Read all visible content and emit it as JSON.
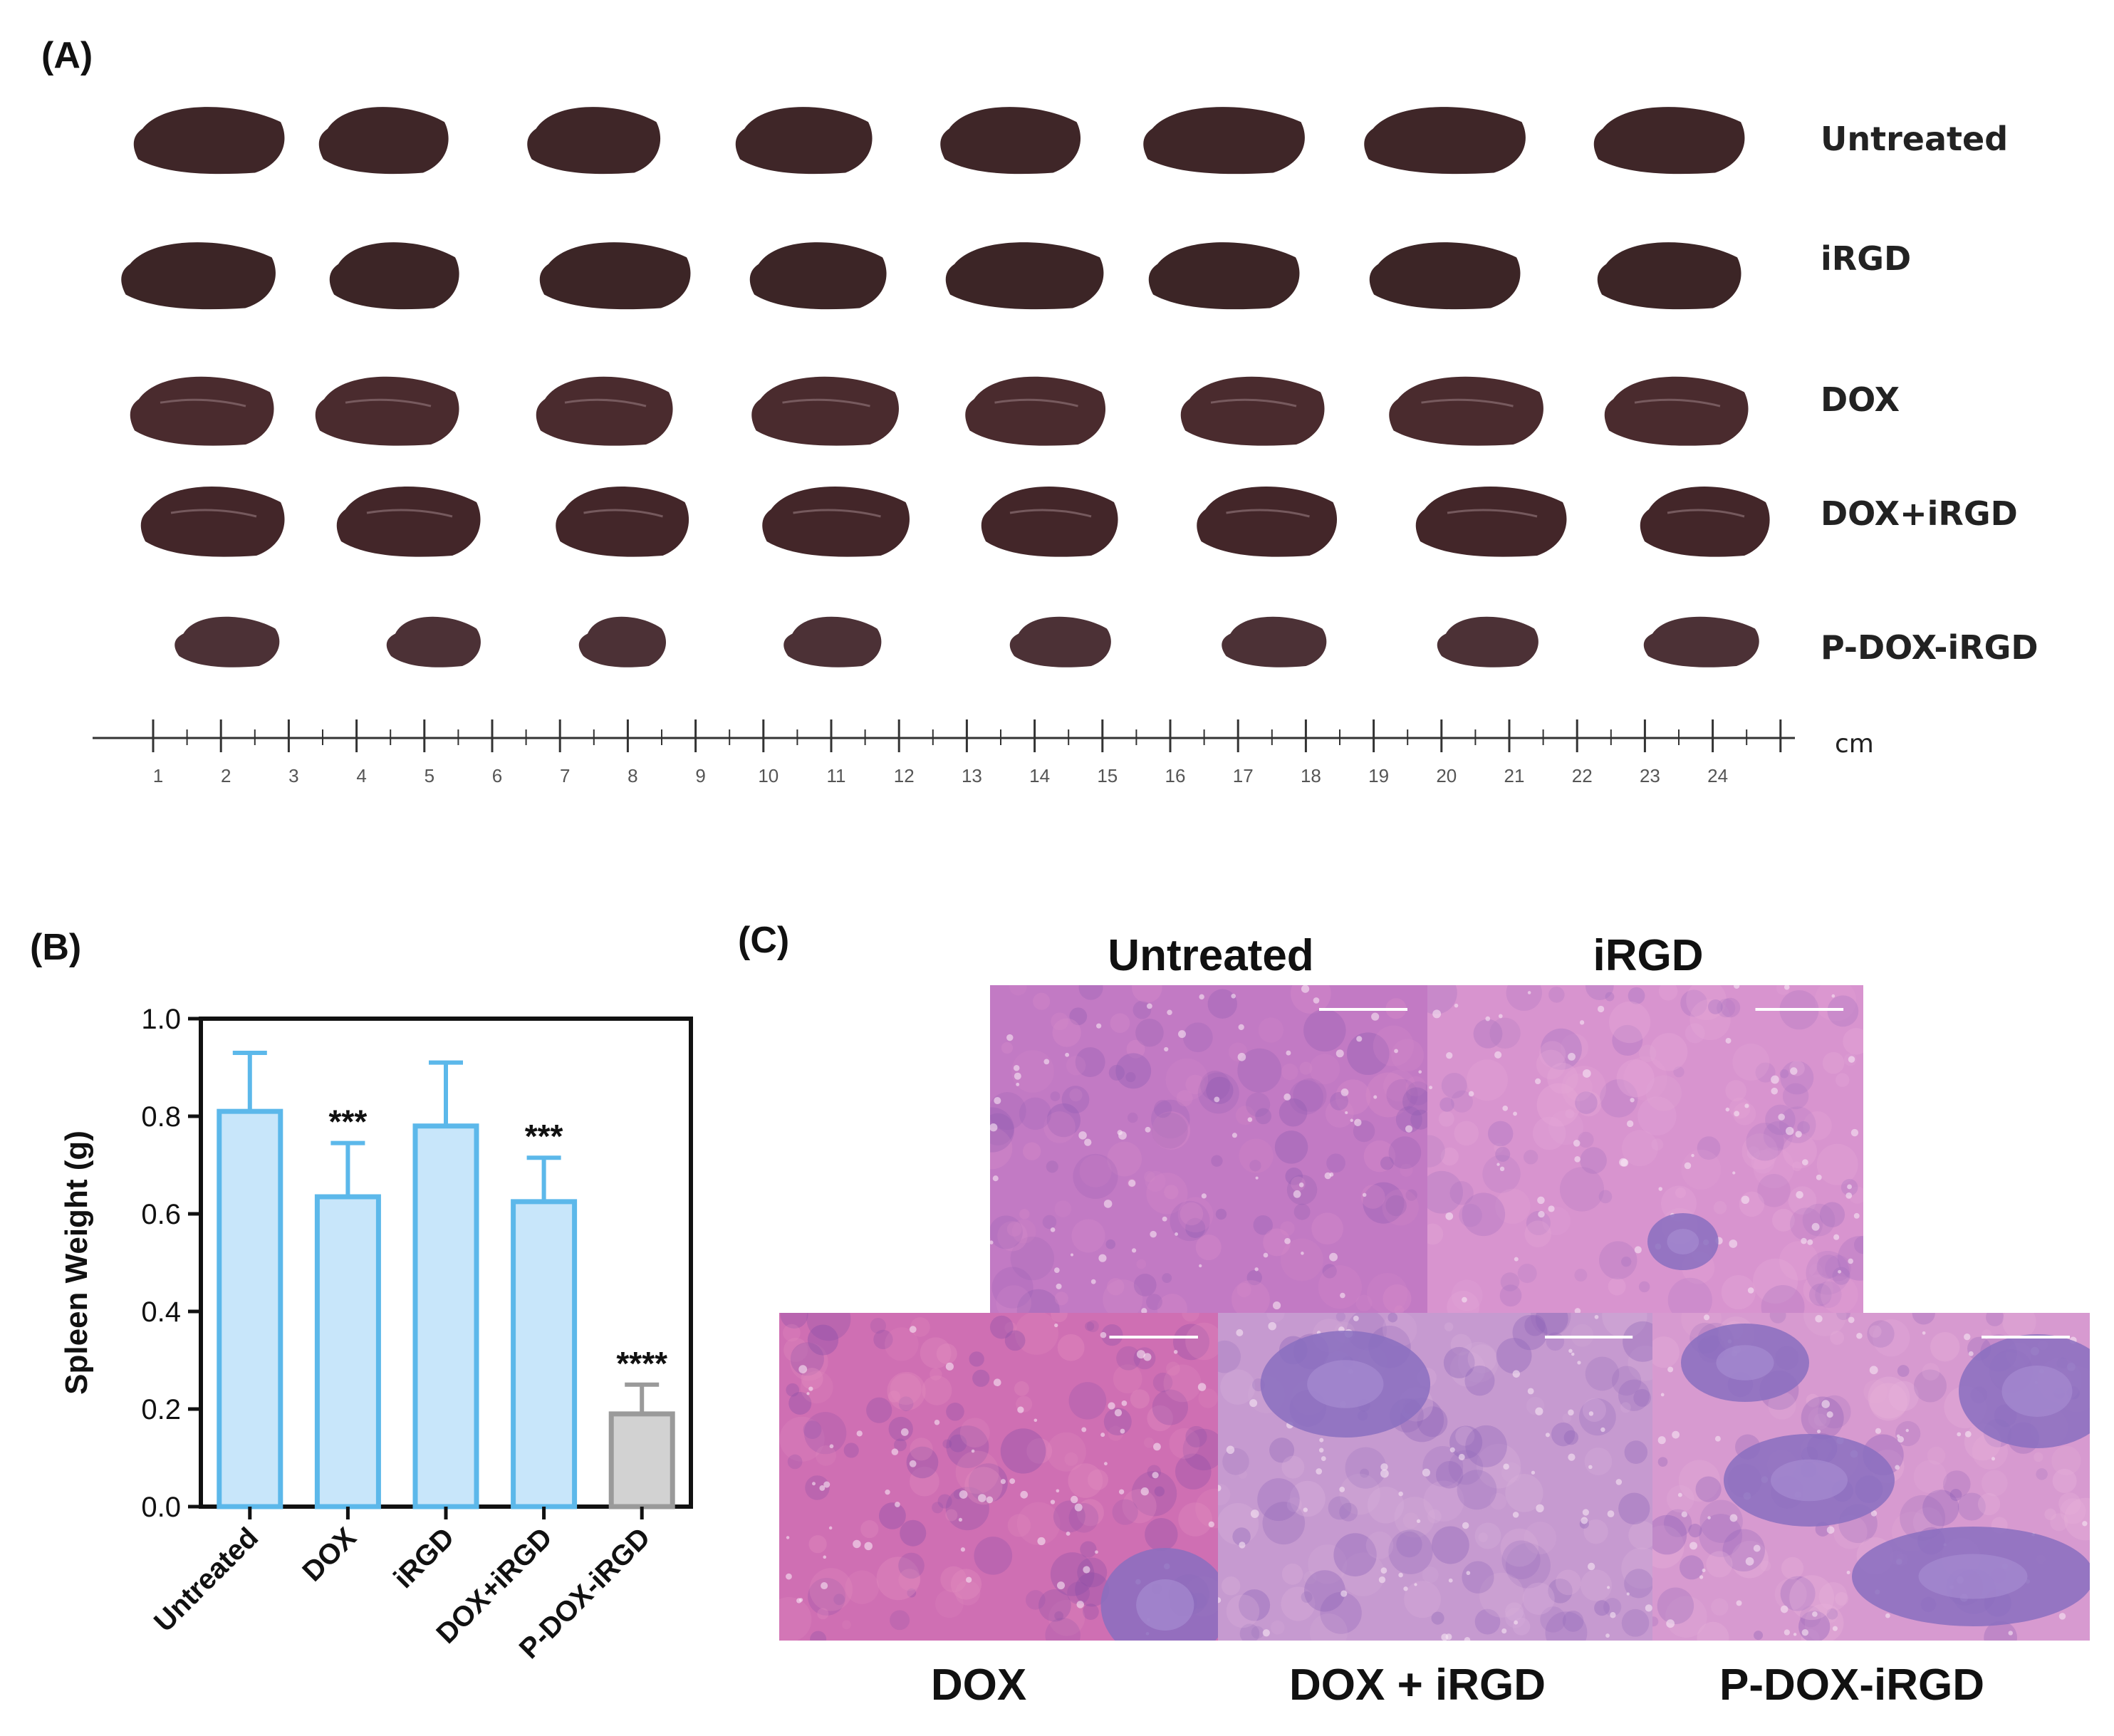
{
  "panels": {
    "a_label": "(A)",
    "b_label": "(B)",
    "c_label": "(C)"
  },
  "photo": {
    "groups": [
      "Untreated",
      "iRGD",
      "DOX",
      "DOX+iRGD",
      "P-DOX-iRGD"
    ],
    "ruler_numbers": [
      "1",
      "2",
      "3",
      "4",
      "5",
      "6",
      "7",
      "8",
      "9",
      "10",
      "11",
      "12",
      "13",
      "14",
      "15",
      "16",
      "17",
      "18",
      "19",
      "20",
      "21",
      "22",
      "23",
      "24"
    ],
    "ruler_unit": "cm"
  },
  "chart_data": {
    "type": "bar",
    "ylabel": "Spleen Weight (g)",
    "ylim": [
      0,
      1.0
    ],
    "yticks": [
      "0.0",
      "0.2",
      "0.4",
      "0.6",
      "0.8",
      "1.0"
    ],
    "categories": [
      "Untreated",
      "DOX",
      "iRGD",
      "DOX+iRGD",
      "P-DOX-iRGD"
    ],
    "values": [
      0.81,
      0.635,
      0.78,
      0.625,
      0.19
    ],
    "errors": [
      0.12,
      0.11,
      0.13,
      0.09,
      0.06
    ],
    "significance": [
      "",
      "***",
      "",
      "***",
      "****"
    ],
    "colors": {
      "fill": "#c8e6fa",
      "stroke": "#5cb8ea",
      "fill_last": "#d2d2d2",
      "stroke_last": "#9a9a9a"
    }
  },
  "histology": {
    "top_titles": [
      "Untreated",
      "iRGD"
    ],
    "bottom_titles": [
      "DOX",
      "DOX + iRGD",
      "P-DOX-iRGD"
    ]
  }
}
